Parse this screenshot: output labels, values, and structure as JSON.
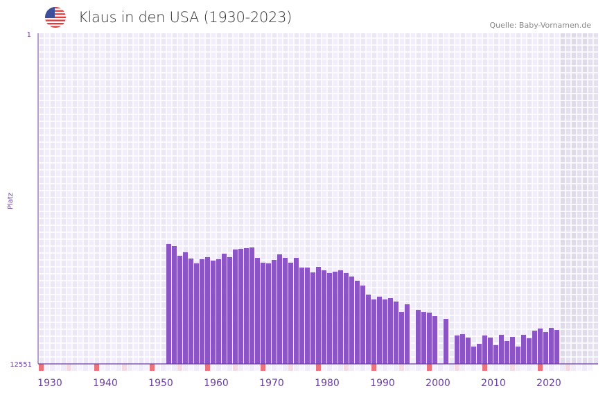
{
  "header": {
    "title": "Klaus in den USA (1930-2023)",
    "source": "Quelle: Baby-Vornamen.de",
    "flag_icon": "usa-flag-icon"
  },
  "colors": {
    "bar": "#8b55c6",
    "axis": "#6b3fa0",
    "plot_bg": "#f1edfa",
    "future_bg": "#e4e0ee",
    "decade_marker": "#e8737a",
    "half_decade_marker": "#f5d9e0"
  },
  "chart_data": {
    "type": "bar",
    "title": "Klaus in den USA (1930-2023)",
    "xlabel": "",
    "ylabel": "Platz",
    "y_scale": "log",
    "y_inverted": true,
    "ylim": [
      1,
      12551
    ],
    "y_tick_labels": [
      "1",
      "12551"
    ],
    "xlim": [
      1930,
      2030
    ],
    "x_tick_labels": [
      "1930",
      "1940",
      "1950",
      "1960",
      "1970",
      "1980",
      "1990",
      "2000",
      "2010",
      "2020"
    ],
    "shaded_from_year": 2024,
    "grid": true,
    "years": [
      1953,
      1954,
      1955,
      1956,
      1957,
      1958,
      1959,
      1960,
      1961,
      1962,
      1963,
      1964,
      1965,
      1966,
      1967,
      1968,
      1969,
      1970,
      1971,
      1972,
      1973,
      1974,
      1975,
      1976,
      1977,
      1978,
      1979,
      1980,
      1981,
      1982,
      1983,
      1984,
      1985,
      1986,
      1987,
      1988,
      1989,
      1990,
      1991,
      1992,
      1993,
      1994,
      1995,
      1996,
      1998,
      1999,
      2000,
      2001,
      2003,
      2005,
      2006,
      2007,
      2008,
      2009,
      2010,
      2011,
      2012,
      2013,
      2014,
      2015,
      2016,
      2017,
      2018,
      2019,
      2020,
      2021,
      2022,
      2023
    ],
    "ranks": [
      409,
      434,
      573,
      518,
      620,
      712,
      632,
      596,
      657,
      632,
      540,
      596,
      479,
      470,
      461,
      452,
      608,
      698,
      712,
      645,
      550,
      608,
      698,
      608,
      802,
      802,
      921,
      786,
      868,
      939,
      903,
      868,
      939,
      1037,
      1168,
      1341,
      1736,
      1994,
      1842,
      1994,
      1917,
      2117,
      2849,
      2291,
      2683,
      2849,
      2905,
      3206,
      3470,
      5582,
      5367,
      5920,
      7655,
      7070,
      5582,
      5920,
      7353,
      5472,
      6535,
      5806,
      7655,
      5472,
      6040,
      4860,
      4577,
      5055,
      4490,
      4764
    ]
  }
}
